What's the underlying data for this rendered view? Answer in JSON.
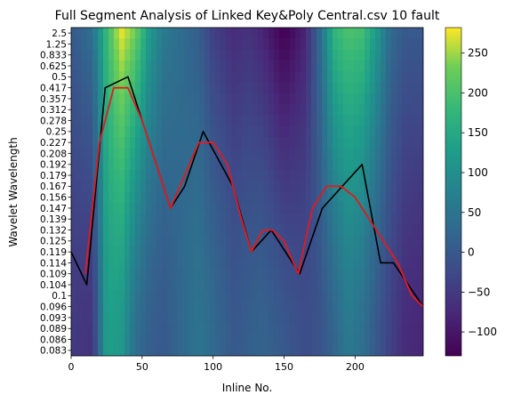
{
  "chart_data": {
    "type": "heatmap",
    "title": "Full Segment Analysis of Linked Key&Poly Central.csv 10 fault",
    "xlabel": "Inline No.",
    "ylabel": "Wavelet Wavelength",
    "xlim": [
      0,
      248
    ],
    "x_ticks": [
      0,
      50,
      100,
      150,
      200
    ],
    "y_categories": [
      "2.5",
      "1.25",
      "0.833",
      "0.625",
      "0.5",
      "0.417",
      "0.357",
      "0.312",
      "0.278",
      "0.25",
      "0.227",
      "0.208",
      "0.192",
      "0.179",
      "0.167",
      "0.156",
      "0.147",
      "0.139",
      "0.132",
      "0.125",
      "0.119",
      "0.114",
      "0.109",
      "0.104",
      "0.1",
      "0.096",
      "0.093",
      "0.089",
      "0.086",
      "0.083"
    ],
    "colormap": "viridis",
    "colorbar": {
      "min": -130,
      "max": 282,
      "ticks": [
        -100,
        -50,
        0,
        50,
        100,
        150,
        200,
        250
      ]
    },
    "heatmap_profile": {
      "x": [
        0,
        15,
        25,
        35,
        45,
        55,
        65,
        75,
        90,
        100,
        115,
        125,
        135,
        150,
        165,
        175,
        185,
        195,
        205,
        215,
        225,
        235,
        248
      ],
      "top": [
        0,
        40,
        180,
        275,
        230,
        120,
        60,
        40,
        10,
        -40,
        -70,
        -60,
        -80,
        -130,
        -80,
        30,
        170,
        200,
        190,
        120,
        30,
        0,
        0
      ],
      "bottom": [
        -50,
        -60,
        130,
        120,
        40,
        10,
        0,
        20,
        50,
        30,
        0,
        10,
        20,
        0,
        -20,
        -10,
        20,
        60,
        40,
        0,
        -40,
        -70,
        -80
      ]
    },
    "series": [
      {
        "color": "#000000",
        "x": [
          0,
          11,
          24,
          40,
          70,
          80,
          93,
          114,
          127,
          141,
          161,
          177,
          205,
          218,
          227,
          248
        ],
        "y_wavelength": [
          0.119,
          0.104,
          0.417,
          0.5,
          0.147,
          0.167,
          0.25,
          0.167,
          0.119,
          0.132,
          0.109,
          0.147,
          0.192,
          0.114,
          0.114,
          0.096
        ]
      },
      {
        "color": "#e41a1c",
        "x": [
          10,
          20,
          30,
          40,
          50,
          60,
          70,
          80,
          90,
          100,
          110,
          120,
          127,
          135,
          142,
          150,
          160,
          170,
          180,
          190,
          200,
          210,
          220,
          230,
          240,
          248
        ],
        "y_wavelength": [
          0.109,
          0.227,
          0.417,
          0.417,
          0.278,
          0.192,
          0.147,
          0.179,
          0.227,
          0.227,
          0.192,
          0.139,
          0.119,
          0.132,
          0.132,
          0.125,
          0.109,
          0.147,
          0.167,
          0.167,
          0.156,
          0.139,
          0.125,
          0.114,
          0.1,
          0.096
        ]
      }
    ]
  }
}
